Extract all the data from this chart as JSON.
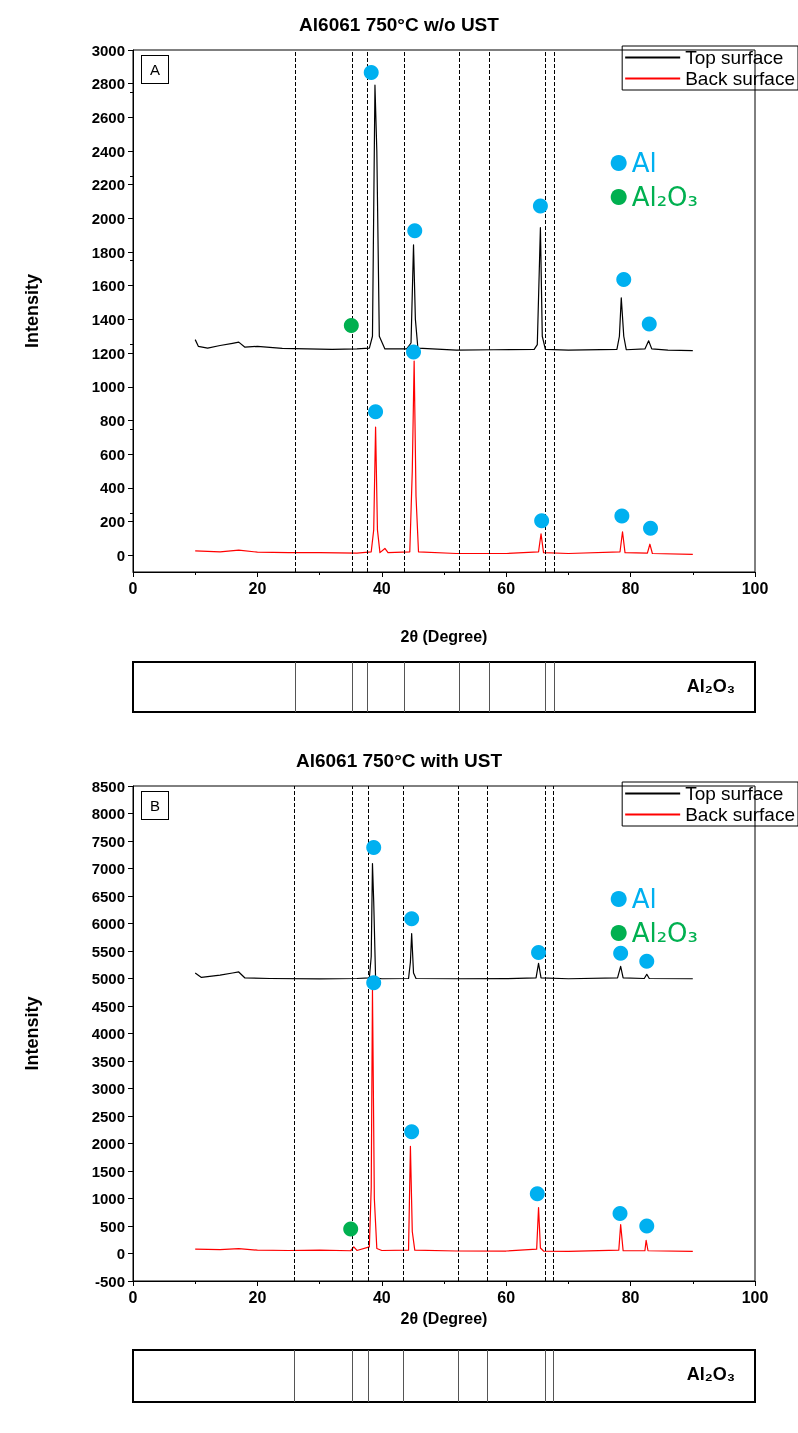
{
  "chart_data": [
    {
      "type": "line",
      "title": "Al6061 750°C w/o UST",
      "xlabel": "2θ (Degree)",
      "ylabel": "Intensity",
      "xlim": [
        0,
        100
      ],
      "xticks": [
        0,
        20,
        40,
        60,
        80,
        100
      ],
      "ylim": [
        -100,
        3000
      ],
      "yticks": [
        0,
        200,
        400,
        600,
        800,
        1000,
        1200,
        1400,
        1600,
        1800,
        2000,
        2200,
        2400,
        2600,
        2800,
        3000
      ],
      "legend": "top right",
      "annotations": [
        "A",
        "Al₂O₃"
      ],
      "series": [
        {
          "name": "Top surface",
          "color": "#000000",
          "x": [
            10,
            10.5,
            12,
            14,
            16,
            17,
            18,
            20,
            24,
            28,
            32,
            36,
            38.0,
            38.5,
            38.9,
            39.2,
            39.6,
            40.5,
            44.0,
            44.7,
            45.1,
            45.4,
            45.8,
            52,
            58,
            64.5,
            65.0,
            65.5,
            65.8,
            66.3,
            70,
            77.8,
            78.2,
            78.5,
            78.9,
            79.3,
            82.3,
            82.9,
            83.4,
            86,
            90
          ],
          "values": [
            1280,
            1240,
            1230,
            1245,
            1258,
            1265,
            1235,
            1240,
            1228,
            1225,
            1222,
            1225,
            1230,
            1300,
            2791,
            2400,
            1300,
            1225,
            1225,
            1260,
            1843,
            1400,
            1230,
            1218,
            1220,
            1222,
            1250,
            1945,
            1300,
            1222,
            1218,
            1222,
            1300,
            1528,
            1300,
            1220,
            1225,
            1273,
            1225,
            1218,
            1215
          ]
        },
        {
          "name": "Back surface",
          "color": "#ff0000",
          "x": [
            10,
            14,
            17,
            20,
            25,
            30,
            36,
            38.3,
            38.7,
            39.0,
            39.3,
            39.7,
            40.5,
            41,
            44.5,
            44.9,
            45.2,
            45.5,
            45.9,
            52,
            60,
            65.2,
            65.6,
            66.0,
            70,
            78.3,
            78.7,
            79.1,
            82.7,
            83.1,
            83.5,
            90
          ],
          "values": [
            25,
            20,
            30,
            18,
            15,
            15,
            12,
            20,
            150,
            761,
            150,
            15,
            40,
            15,
            20,
            500,
            1153,
            350,
            20,
            10,
            10,
            20,
            127,
            15,
            10,
            20,
            139,
            15,
            12,
            65,
            10,
            5
          ]
        },
        {
          "name": "Al",
          "type": "scatter",
          "marker": "circle",
          "color": "#00b0f0",
          "x": [
            38.3,
            45.3,
            65.5,
            78.9,
            83.0,
            45.1,
            39.0,
            65.7,
            78.6,
            83.2
          ],
          "values": [
            2866,
            1926,
            2074,
            1637,
            1373,
            1207,
            851,
            205,
            232,
            160
          ]
        },
        {
          "name": "Al₂O₃",
          "type": "scatter",
          "marker": "circle",
          "color": "#00b050",
          "x": [
            35.1
          ],
          "values": [
            1364
          ]
        }
      ],
      "ref_lines": [
        {
          "axis": "x",
          "value": 26.1,
          "label": null,
          "line_style": "dashed"
        },
        {
          "axis": "x",
          "value": 35.2,
          "label": null,
          "line_style": "dashed"
        },
        {
          "axis": "x",
          "value": 37.7,
          "label": null,
          "line_style": "dashed"
        },
        {
          "axis": "x",
          "value": 43.6,
          "label": null,
          "line_style": "dashed"
        },
        {
          "axis": "x",
          "value": 52.5,
          "label": null,
          "line_style": "dashed"
        },
        {
          "axis": "x",
          "value": 57.2,
          "label": null,
          "line_style": "dashed"
        },
        {
          "axis": "x",
          "value": 66.3,
          "label": null,
          "line_style": "dashed"
        },
        {
          "axis": "x",
          "value": 67.8,
          "label": null,
          "line_style": "dashed"
        }
      ]
    },
    {
      "type": "line",
      "title": "Al6061 750°C with UST",
      "xlabel": "2θ (Degree)",
      "ylabel": "Intensity",
      "xlim": [
        0,
        100
      ],
      "xticks": [
        0,
        20,
        40,
        60,
        80,
        100
      ],
      "ylim": [
        -500,
        8500
      ],
      "yticks": [
        -500,
        0,
        500,
        1000,
        1500,
        2000,
        2500,
        3000,
        3500,
        4000,
        4500,
        5000,
        5500,
        6000,
        6500,
        7000,
        7500,
        8000,
        8500
      ],
      "legend": "top right",
      "annotations": [
        "B",
        "Al₂O₃"
      ],
      "series": [
        {
          "name": "Top surface",
          "color": "#000000",
          "x": [
            10,
            11,
            14,
            16,
            17,
            18,
            22,
            30,
            36,
            38.0,
            38.3,
            38.5,
            38.7,
            39.0,
            40,
            44.3,
            44.6,
            44.8,
            45.1,
            45.5,
            52,
            60,
            64.8,
            65.2,
            65.6,
            70,
            77.9,
            78.4,
            78.8,
            82.2,
            82.6,
            83.0,
            90
          ],
          "values": [
            5100,
            5020,
            5060,
            5100,
            5119,
            5010,
            5000,
            4995,
            5000,
            5010,
            5400,
            7090,
            6400,
            5010,
            4995,
            5000,
            5300,
            5818,
            5100,
            5000,
            4995,
            4998,
            5010,
            5276,
            5010,
            4995,
            5010,
            5222,
            5010,
            5000,
            5077,
            5000,
            4995
          ]
        },
        {
          "name": "Back surface",
          "color": "#ff0000",
          "x": [
            10,
            14,
            17,
            20,
            25,
            30,
            35,
            35.5,
            36,
            38.0,
            38.3,
            38.5,
            38.8,
            39.2,
            40,
            44.3,
            44.6,
            44.9,
            45.3,
            52,
            60,
            64.9,
            65.2,
            65.5,
            66,
            70,
            78.1,
            78.4,
            78.8,
            82.3,
            82.5,
            82.8,
            90
          ],
          "values": [
            80,
            70,
            90,
            60,
            55,
            60,
            50,
            120,
            55,
            120,
            1200,
            4800,
            1000,
            90,
            55,
            60,
            1948,
            400,
            60,
            45,
            45,
            80,
            835,
            100,
            45,
            40,
            60,
            524,
            50,
            50,
            240,
            50,
            40
          ]
        },
        {
          "name": "Al",
          "type": "scatter",
          "marker": "circle",
          "color": "#00b0f0",
          "x": [
            38.7,
            44.8,
            65.2,
            78.4,
            82.6,
            38.7,
            44.8,
            65.0,
            78.3,
            82.6
          ],
          "values": [
            7381,
            6088,
            5471,
            5457,
            5312,
            4922,
            2215,
            1088,
            727,
            500
          ]
        },
        {
          "name": "Al₂O₃",
          "type": "scatter",
          "marker": "circle",
          "color": "#00b050",
          "x": [
            35.0
          ],
          "values": [
            446
          ]
        }
      ],
      "ref_lines": [
        {
          "axis": "x",
          "value": 25.9,
          "label": null,
          "line_style": "dashed"
        },
        {
          "axis": "x",
          "value": 35.2,
          "label": null,
          "line_style": "dashed"
        },
        {
          "axis": "x",
          "value": 37.8,
          "label": null,
          "line_style": "dashed"
        },
        {
          "axis": "x",
          "value": 43.4,
          "label": null,
          "line_style": "dashed"
        },
        {
          "axis": "x",
          "value": 52.3,
          "label": null,
          "line_style": "dashed"
        },
        {
          "axis": "x",
          "value": 57.0,
          "label": null,
          "line_style": "dashed"
        },
        {
          "axis": "x",
          "value": 66.2,
          "label": null,
          "line_style": "dashed"
        },
        {
          "axis": "x",
          "value": 67.6,
          "label": null,
          "line_style": "dashed"
        }
      ]
    }
  ]
}
